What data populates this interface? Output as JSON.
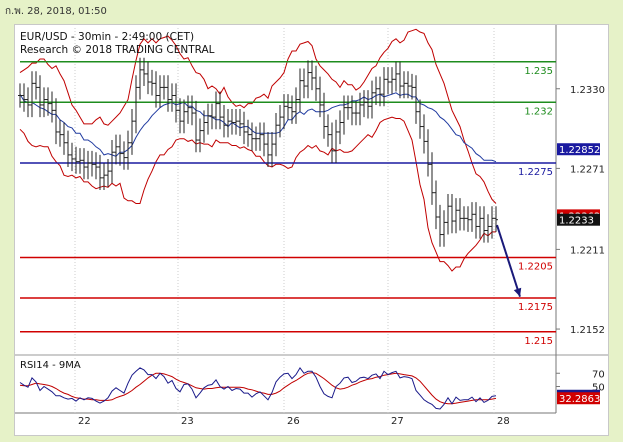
{
  "header": {
    "timestamp": "ก.พ. 28, 2018, 01:50"
  },
  "chart_title": "EUR/USD - 30min - 2:49:00 (CET)",
  "copyright": "Research © 2018 TRADING CENTRAL",
  "colors": {
    "price": "#222222",
    "bollinger": "#c00000",
    "moving_average": "#1f3aa0",
    "resistance": "#1e8c1e",
    "pivot": "#1a1aa0",
    "support": "#d00000",
    "arrow": "#1a1a7a",
    "rsi": "#1a1a8a",
    "rsi_ma": "#c00000"
  },
  "chart_data": [
    {
      "type": "line",
      "panel": "price",
      "title": "EUR/USD - 30min - 2:49:00 (CET)",
      "ylim": [
        1.2135,
        1.2375
      ],
      "y_ticks": [
        "1.2330",
        "1.2271",
        "1.2211",
        "1.2152"
      ],
      "x_ticks": [
        "22",
        "23",
        "26",
        "27",
        "28"
      ],
      "levels": [
        {
          "label": "1.235",
          "value": 1.235,
          "kind": "resistance"
        },
        {
          "label": "1.232",
          "value": 1.232,
          "kind": "resistance"
        },
        {
          "label": "1.2275",
          "value": 1.2275,
          "kind": "pivot"
        },
        {
          "label": "1.2205",
          "value": 1.2205,
          "kind": "support"
        },
        {
          "label": "1.2175",
          "value": 1.2175,
          "kind": "support"
        },
        {
          "label": "1.215",
          "value": 1.215,
          "kind": "support"
        }
      ],
      "price_tags": [
        {
          "label": "1.22852",
          "value": 1.22852,
          "bg": "#1a1aa0",
          "fg": "#ffffff"
        },
        {
          "label": "1.22362",
          "value": 1.22362,
          "bg": "#d00000",
          "fg": "#ffffff"
        },
        {
          "label": "1.2233",
          "value": 1.2233,
          "bg": "#111111",
          "fg": "#ffffff"
        }
      ],
      "x": [
        0,
        4,
        8,
        12,
        16,
        20,
        24,
        28,
        32,
        36,
        40,
        44,
        48,
        52,
        56,
        60,
        64,
        68,
        72,
        76,
        80,
        84,
        88,
        92,
        96,
        100,
        104,
        108,
        112,
        116,
        120,
        124,
        128,
        132,
        136,
        140,
        144,
        148,
        152,
        156,
        160,
        164,
        168,
        172,
        176,
        180,
        184,
        188,
        192,
        196,
        200,
        204,
        208,
        212,
        216,
        220,
        224,
        228,
        232,
        236,
        240,
        244,
        248,
        252,
        256,
        260,
        264,
        268,
        272,
        276,
        280,
        284,
        288,
        292,
        296,
        300,
        304,
        308,
        312,
        316,
        320,
        324,
        328,
        332,
        336,
        340,
        344,
        348,
        352,
        356,
        360,
        364,
        368,
        372,
        376,
        380,
        384,
        388,
        392,
        396,
        400,
        404,
        408,
        412,
        416,
        420,
        424,
        428,
        432,
        436,
        440,
        444,
        448,
        452,
        456,
        460,
        464,
        468,
        472,
        476
      ],
      "series": [
        {
          "kind": "price",
          "values": [
            1.2325,
            1.2322,
            1.2318,
            1.2334,
            1.2331,
            1.2318,
            1.2322,
            1.2319,
            1.2314,
            1.2298,
            1.2296,
            1.229,
            1.2281,
            1.2278,
            1.2276,
            1.2277,
            1.2272,
            1.2275,
            1.2274,
            1.2272,
            1.2264,
            1.2266,
            1.2269,
            1.2283,
            1.2287,
            1.2282,
            1.2279,
            1.229,
            1.2306,
            1.2331,
            1.2344,
            1.2341,
            1.2335,
            1.2334,
            1.2325,
            1.2331,
            1.2331,
            1.2322,
            1.2325,
            1.2314,
            1.2306,
            1.2313,
            1.2316,
            1.2312,
            1.2292,
            1.2299,
            1.2305,
            1.231,
            1.2309,
            1.2319,
            1.2309,
            1.2303,
            1.2306,
            1.2305,
            1.2306,
            1.2304,
            1.2298,
            1.2296,
            1.2293,
            1.2293,
            1.2296,
            1.2289,
            1.2281,
            1.2289,
            1.2303,
            1.2309,
            1.2317,
            1.2316,
            1.2313,
            1.2322,
            1.2336,
            1.2332,
            1.2342,
            1.2338,
            1.233,
            1.2318,
            1.2302,
            1.2296,
            1.2284,
            1.2298,
            1.2305,
            1.2316,
            1.2316,
            1.2312,
            1.2312,
            1.2318,
            1.232,
            1.2317,
            1.2327,
            1.233,
            1.2326,
            1.2337,
            1.2335,
            1.2337,
            1.2341,
            1.2332,
            1.2334,
            1.2332,
            1.2331,
            1.2313,
            1.2302,
            1.2291,
            1.2274,
            1.2253,
            1.2235,
            1.2222,
            1.2231,
            1.2243,
            1.2232,
            1.224,
            1.2234,
            1.2234,
            1.2233,
            1.2237,
            1.2228,
            1.2234,
            1.2225,
            1.2228,
            1.2234,
            1.2233
          ]
        },
        {
          "kind": "bollinger_upper",
          "values": [
            1.2342,
            1.2344,
            1.2346,
            1.2349,
            1.2349,
            1.2352,
            1.2352,
            1.2348,
            1.2345,
            1.2347,
            1.2341,
            1.2336,
            1.2327,
            1.2318,
            1.2314,
            1.2309,
            1.2304,
            1.2304,
            1.2304,
            1.2307,
            1.2309,
            1.2304,
            1.2303,
            1.2306,
            1.2309,
            1.2312,
            1.2317,
            1.2322,
            1.2337,
            1.2351,
            1.2363,
            1.2367,
            1.2364,
            1.2367,
            1.2364,
            1.2367,
            1.2368,
            1.2369,
            1.2366,
            1.2362,
            1.2356,
            1.2352,
            1.2353,
            1.2347,
            1.2342,
            1.2341,
            1.2337,
            1.233,
            1.2332,
            1.233,
            1.2326,
            1.2331,
            1.2324,
            1.232,
            1.2317,
            1.2318,
            1.2316,
            1.2319,
            1.2319,
            1.2323,
            1.2324,
            1.2326,
            1.2323,
            1.2332,
            1.2335,
            1.2338,
            1.2342,
            1.2352,
            1.2358,
            1.2358,
            1.2363,
            1.2364,
            1.2365,
            1.2362,
            1.2352,
            1.2347,
            1.2344,
            1.2341,
            1.2337,
            1.2335,
            1.2331,
            1.2336,
            1.2333,
            1.2333,
            1.2329,
            1.2331,
            1.2335,
            1.234,
            1.2345,
            1.2347,
            1.2353,
            1.2357,
            1.236,
            1.2365,
            1.2367,
            1.2364,
            1.2366,
            1.2372,
            1.2373,
            1.2374,
            1.2372,
            1.2371,
            1.2364,
            1.2359,
            1.2348,
            1.2341,
            1.2334,
            1.2324,
            1.2314,
            1.2308,
            1.2302,
            1.2292,
            1.2284,
            1.2275,
            1.2267,
            1.2265,
            1.2261,
            1.2254,
            1.2248,
            1.2245
          ]
        },
        {
          "kind": "bollinger_lower",
          "values": [
            1.23,
            1.2297,
            1.2291,
            1.2288,
            1.2287,
            1.2288,
            1.2287,
            1.2287,
            1.228,
            1.2276,
            1.2273,
            1.2266,
            1.2265,
            1.2266,
            1.2264,
            1.2265,
            1.2261,
            1.2261,
            1.2258,
            1.2256,
            1.2257,
            1.2258,
            1.2257,
            1.226,
            1.2258,
            1.226,
            1.2249,
            1.2247,
            1.2247,
            1.2245,
            1.2245,
            1.2255,
            1.2263,
            1.2269,
            1.2276,
            1.2281,
            1.2281,
            1.2285,
            1.2287,
            1.2292,
            1.2293,
            1.2293,
            1.2291,
            1.2292,
            1.2289,
            1.229,
            1.2289,
            1.2289,
            1.2287,
            1.2292,
            1.229,
            1.229,
            1.229,
            1.2288,
            1.2288,
            1.2286,
            1.2287,
            1.2285,
            1.2284,
            1.228,
            1.228,
            1.2276,
            1.2273,
            1.2272,
            1.2274,
            1.2274,
            1.2273,
            1.2271,
            1.2272,
            1.2279,
            1.2283,
            1.2285,
            1.2288,
            1.2286,
            1.2288,
            1.2284,
            1.2283,
            1.2281,
            1.2286,
            1.2284,
            1.2285,
            1.2283,
            1.2283,
            1.2284,
            1.2287,
            1.229,
            1.2293,
            1.2296,
            1.2294,
            1.2299,
            1.2305,
            1.2307,
            1.2308,
            1.2309,
            1.2308,
            1.2308,
            1.2306,
            1.2299,
            1.2292,
            1.2276,
            1.2259,
            1.2248,
            1.2227,
            1.2216,
            1.2209,
            1.2202,
            1.2202,
            1.2199,
            1.2195,
            1.2198,
            1.2198,
            1.2204,
            1.2208,
            1.2211,
            1.2214,
            1.2218,
            1.2223,
            1.2221,
            1.2224,
            1.2224
          ]
        },
        {
          "kind": "moving_average",
          "values": [
            1.2326,
            1.2321,
            1.232,
            1.232,
            1.2318,
            1.2316,
            1.2315,
            1.2313,
            1.2311,
            1.2311,
            1.2307,
            1.2305,
            1.2302,
            1.2301,
            1.2297,
            1.2297,
            1.2292,
            1.2292,
            1.229,
            1.2287,
            1.2285,
            1.2281,
            1.2282,
            1.2281,
            1.228,
            1.2283,
            1.2283,
            1.2285,
            1.2288,
            1.2294,
            1.2299,
            1.2303,
            1.2306,
            1.231,
            1.2313,
            1.2316,
            1.2318,
            1.2319,
            1.232,
            1.2318,
            1.2319,
            1.232,
            1.2317,
            1.2317,
            1.2314,
            1.2313,
            1.231,
            1.231,
            1.2309,
            1.2307,
            1.2307,
            1.2305,
            1.2302,
            1.2305,
            1.2303,
            1.2301,
            1.2302,
            1.2302,
            1.2299,
            1.2297,
            1.2297,
            1.2297,
            1.2297,
            1.2297,
            1.2297,
            1.2298,
            1.2302,
            1.2307,
            1.2307,
            1.2311,
            1.2313,
            1.2311,
            1.2314,
            1.2315,
            1.2313,
            1.2313,
            1.2313,
            1.2314,
            1.2316,
            1.2317,
            1.2318,
            1.2318,
            1.2319,
            1.2321,
            1.2321,
            1.2322,
            1.2324,
            1.2322,
            1.2323,
            1.2325,
            1.2326,
            1.2324,
            1.2325,
            1.2326,
            1.2327,
            1.2325,
            1.2326,
            1.2326,
            1.2324,
            1.2324,
            1.2319,
            1.2318,
            1.2316,
            1.2315,
            1.2313,
            1.2309,
            1.2307,
            1.2304,
            1.23,
            1.2296,
            1.2295,
            1.229,
            1.2288,
            1.2286,
            1.2282,
            1.228,
            1.2277,
            1.2277,
            1.2277,
            1.2276
          ]
        }
      ],
      "forecast_arrow": {
        "from": [
          477,
          1.2229
        ],
        "to": [
          500,
          1.2176
        ]
      }
    },
    {
      "type": "line",
      "panel": "rsi",
      "title": "RSI14 - 9MA",
      "ylim": [
        10,
        90
      ],
      "y_ticks": [
        "70",
        "50"
      ],
      "value_tags": [
        {
          "label": "36.0171",
          "value": 36.0171,
          "bg": "#1a1a8a",
          "fg": "#ffffff"
        },
        {
          "label": "32.2863",
          "value": 32.2863,
          "bg": "#d00000",
          "fg": "#ffffff"
        }
      ],
      "x": [
        0,
        4,
        8,
        12,
        16,
        20,
        24,
        28,
        32,
        36,
        40,
        44,
        48,
        52,
        56,
        60,
        64,
        68,
        72,
        76,
        80,
        84,
        88,
        92,
        96,
        100,
        104,
        108,
        112,
        116,
        120,
        124,
        128,
        132,
        136,
        140,
        144,
        148,
        152,
        156,
        160,
        164,
        168,
        172,
        176,
        180,
        184,
        188,
        192,
        196,
        200,
        204,
        208,
        212,
        216,
        220,
        224,
        228,
        232,
        236,
        240,
        244,
        248,
        252,
        256,
        260,
        264,
        268,
        272,
        276,
        280,
        284,
        288,
        292,
        296,
        300,
        304,
        308,
        312,
        316,
        320,
        324,
        328,
        332,
        336,
        340,
        344,
        348,
        352,
        356,
        360,
        364,
        368,
        372,
        376,
        380,
        384,
        388,
        392,
        396,
        400,
        404,
        408,
        412,
        416,
        420,
        424,
        428,
        432,
        436,
        440,
        444,
        448,
        452,
        456,
        460,
        464,
        468,
        472,
        476
      ],
      "series": [
        {
          "kind": "rsi",
          "values": [
            56,
            52,
            49,
            63,
            57,
            44,
            50,
            46,
            42,
            36,
            36,
            33,
            31,
            32,
            28,
            33,
            30,
            33,
            32,
            28,
            25,
            28,
            33,
            43,
            48,
            44,
            40,
            55,
            67,
            73,
            78,
            75,
            68,
            68,
            62,
            70,
            65,
            55,
            59,
            47,
            42,
            53,
            54,
            46,
            33,
            40,
            48,
            52,
            53,
            60,
            50,
            46,
            50,
            44,
            47,
            46,
            40,
            40,
            34,
            39,
            42,
            36,
            30,
            41,
            57,
            64,
            69,
            70,
            62,
            68,
            78,
            70,
            73,
            73,
            64,
            50,
            39,
            35,
            33,
            50,
            55,
            63,
            64,
            56,
            58,
            63,
            64,
            62,
            67,
            69,
            62,
            73,
            68,
            71,
            73,
            63,
            65,
            64,
            62,
            44,
            37,
            30,
            26,
            23,
            17,
            16,
            23,
            33,
            24,
            34,
            29,
            30,
            30,
            34,
            27,
            33,
            26,
            29,
            35,
            36
          ]
        },
        {
          "kind": "rsi_ma",
          "values": [
            52,
            51,
            51,
            53,
            55,
            54,
            53,
            52,
            50,
            47,
            43,
            40,
            38,
            35,
            33,
            32,
            31,
            31,
            30,
            30,
            29,
            29,
            29,
            30,
            33,
            35,
            37,
            40,
            44,
            49,
            53,
            58,
            63,
            67,
            70,
            70,
            69,
            67,
            65,
            61,
            58,
            56,
            54,
            51,
            48,
            47,
            46,
            47,
            47,
            48,
            49,
            49,
            49,
            49,
            49,
            49,
            48,
            46,
            45,
            43,
            41,
            40,
            38,
            38,
            40,
            43,
            48,
            52,
            56,
            59,
            63,
            67,
            70,
            71,
            70,
            66,
            62,
            57,
            52,
            48,
            46,
            47,
            49,
            52,
            54,
            57,
            59,
            61,
            62,
            64,
            65,
            67,
            68,
            69,
            70,
            69,
            68,
            67,
            66,
            63,
            58,
            51,
            44,
            37,
            31,
            27,
            25,
            24,
            24,
            25,
            26,
            27,
            28,
            29,
            30,
            30,
            30,
            30,
            31,
            32
          ]
        }
      ]
    }
  ]
}
